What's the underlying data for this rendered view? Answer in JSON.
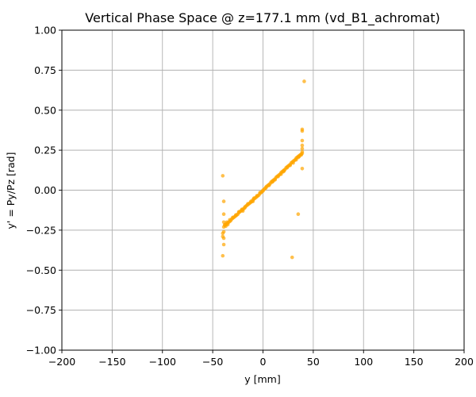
{
  "chart_data": {
    "type": "scatter",
    "title": "Vertical Phase Space @ z=177.1 mm (vd_B1_achromat)",
    "xlabel": "y [mm]",
    "ylabel": "y' = Py/Pz [rad]",
    "xlim": [
      -200,
      200
    ],
    "ylim": [
      -1.0,
      1.0
    ],
    "xticks": [
      -200,
      -150,
      -100,
      -50,
      0,
      50,
      100,
      150,
      200
    ],
    "xtick_labels": [
      "−200",
      "−150",
      "−100",
      "−50",
      "0",
      "50",
      "100",
      "150",
      "200"
    ],
    "yticks": [
      -1.0,
      -0.75,
      -0.5,
      -0.25,
      0.0,
      0.25,
      0.5,
      0.75,
      1.0
    ],
    "ytick_labels": [
      "−1.00",
      "−0.75",
      "−0.50",
      "−0.25",
      "0.00",
      "0.25",
      "0.50",
      "0.75",
      "1.00"
    ],
    "grid": true,
    "color": "#FFA500",
    "series": [
      {
        "points": [
          [
            -39,
            -0.23
          ],
          [
            -38,
            -0.22
          ],
          [
            -37,
            -0.215
          ],
          [
            -36,
            -0.21
          ],
          [
            -35,
            -0.205
          ],
          [
            -34,
            -0.2
          ],
          [
            -33,
            -0.195
          ],
          [
            -32,
            -0.19
          ],
          [
            -31,
            -0.18
          ],
          [
            -30,
            -0.175
          ],
          [
            -29,
            -0.17
          ],
          [
            -28,
            -0.165
          ],
          [
            -27,
            -0.16
          ],
          [
            -26,
            -0.155
          ],
          [
            -25,
            -0.15
          ],
          [
            -24,
            -0.14
          ],
          [
            -23,
            -0.135
          ],
          [
            -22,
            -0.13
          ],
          [
            -21,
            -0.125
          ],
          [
            -20,
            -0.12
          ],
          [
            -19,
            -0.115
          ],
          [
            -18,
            -0.11
          ],
          [
            -17,
            -0.1
          ],
          [
            -16,
            -0.095
          ],
          [
            -15,
            -0.09
          ],
          [
            -14,
            -0.085
          ],
          [
            -13,
            -0.08
          ],
          [
            -12,
            -0.075
          ],
          [
            -11,
            -0.07
          ],
          [
            -10,
            -0.06
          ],
          [
            -9,
            -0.055
          ],
          [
            -8,
            -0.05
          ],
          [
            -7,
            -0.045
          ],
          [
            -6,
            -0.04
          ],
          [
            -5,
            -0.035
          ],
          [
            -4,
            -0.03
          ],
          [
            -3,
            -0.02
          ],
          [
            -2,
            -0.015
          ],
          [
            -1,
            -0.01
          ],
          [
            0,
            -0.005
          ],
          [
            0,
            0.0
          ],
          [
            1,
            0.005
          ],
          [
            2,
            0.01
          ],
          [
            3,
            0.02
          ],
          [
            4,
            0.025
          ],
          [
            5,
            0.03
          ],
          [
            6,
            0.035
          ],
          [
            7,
            0.04
          ],
          [
            8,
            0.05
          ],
          [
            9,
            0.055
          ],
          [
            10,
            0.06
          ],
          [
            11,
            0.065
          ],
          [
            12,
            0.07
          ],
          [
            13,
            0.08
          ],
          [
            14,
            0.085
          ],
          [
            15,
            0.09
          ],
          [
            16,
            0.095
          ],
          [
            17,
            0.1
          ],
          [
            18,
            0.11
          ],
          [
            19,
            0.115
          ],
          [
            20,
            0.12
          ],
          [
            21,
            0.125
          ],
          [
            22,
            0.13
          ],
          [
            23,
            0.14
          ],
          [
            24,
            0.145
          ],
          [
            25,
            0.15
          ],
          [
            26,
            0.155
          ],
          [
            27,
            0.16
          ],
          [
            28,
            0.17
          ],
          [
            29,
            0.175
          ],
          [
            30,
            0.18
          ],
          [
            31,
            0.185
          ],
          [
            32,
            0.19
          ],
          [
            33,
            0.2
          ],
          [
            34,
            0.205
          ],
          [
            35,
            0.21
          ],
          [
            36,
            0.215
          ],
          [
            37,
            0.22
          ],
          [
            38,
            0.225
          ],
          [
            39,
            0.23
          ],
          [
            -38,
            -0.215
          ],
          [
            -36,
            -0.2
          ],
          [
            -33,
            -0.185
          ],
          [
            -30,
            -0.17
          ],
          [
            -27,
            -0.155
          ],
          [
            -24,
            -0.135
          ],
          [
            -21,
            -0.12
          ],
          [
            -18,
            -0.105
          ],
          [
            -15,
            -0.085
          ],
          [
            -12,
            -0.07
          ],
          [
            -9,
            -0.05
          ],
          [
            -6,
            -0.035
          ],
          [
            -3,
            -0.015
          ],
          [
            3,
            0.015
          ],
          [
            6,
            0.03
          ],
          [
            9,
            0.05
          ],
          [
            12,
            0.065
          ],
          [
            15,
            0.085
          ],
          [
            18,
            0.1
          ],
          [
            21,
            0.12
          ],
          [
            24,
            0.14
          ],
          [
            27,
            0.155
          ],
          [
            30,
            0.17
          ],
          [
            33,
            0.19
          ],
          [
            36,
            0.21
          ],
          [
            38,
            0.22
          ],
          [
            -37,
            -0.225
          ],
          [
            -35,
            -0.215
          ],
          [
            -20,
            -0.13
          ],
          [
            -10,
            -0.07
          ],
          [
            10,
            0.055
          ],
          [
            20,
            0.115
          ],
          [
            35,
            0.205
          ],
          [
            -39,
            -0.2
          ],
          [
            -39,
            -0.26
          ],
          [
            -39,
            -0.3
          ],
          [
            -40,
            -0.29
          ],
          [
            -40,
            -0.27
          ],
          [
            -39,
            -0.34
          ],
          [
            -40,
            -0.41
          ],
          [
            -39,
            -0.15
          ],
          [
            -39,
            -0.07
          ],
          [
            -40,
            0.09
          ],
          [
            39,
            0.24
          ],
          [
            39,
            0.26
          ],
          [
            39,
            0.28
          ],
          [
            39,
            0.31
          ],
          [
            39,
            0.37
          ],
          [
            39,
            0.38
          ],
          [
            39,
            0.135
          ],
          [
            41,
            0.68
          ],
          [
            35,
            -0.15
          ],
          [
            29,
            -0.42
          ]
        ]
      }
    ]
  }
}
